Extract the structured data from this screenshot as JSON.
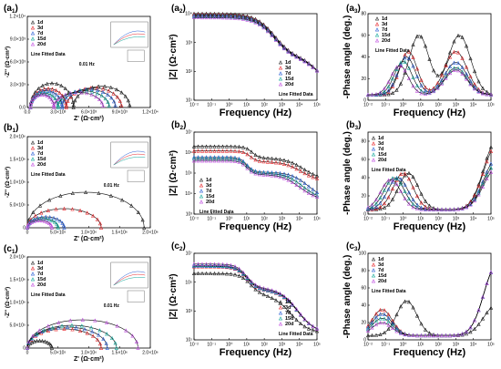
{
  "figure": {
    "legend_entries": [
      "1d",
      "3d",
      "7d",
      "15d",
      "20d"
    ],
    "fit_label": "Line Fitted Data",
    "freq_note": "0.01 Hz",
    "colors": {
      "1d": "#222222",
      "3d": "#e8262b",
      "7d": "#2a5fd6",
      "15d": "#12a79a",
      "20d": "#c04fe0",
      "fit": "#000000"
    }
  },
  "chart_data": [
    {
      "panel": "a1",
      "type": "scatter",
      "xlabel": "Z' (Ω·cm²)",
      "ylabel": "-Z'' (Ω·cm²)",
      "xlim": [
        0,
        12000
      ],
      "ylim": [
        0,
        12000
      ],
      "xticks": [
        0,
        3000,
        6000,
        9000,
        12000
      ],
      "yticks": [
        0,
        3000,
        6000,
        9000,
        12000
      ],
      "xtick_labels": [
        "0.0",
        "3.0×10³",
        "6.0×10³",
        "9.0×10³",
        "1.2×10⁴"
      ],
      "ytick_labels": [
        "0.0",
        "3.0×10³",
        "6.0×10³",
        "9.0×10³",
        "1.2×10⁴"
      ],
      "series": [
        {
          "name": "1d",
          "shape": "arcs",
          "arcs": [
            [
              300,
              4500,
              3200
            ],
            [
              4500,
              10000,
              2800
            ]
          ]
        },
        {
          "name": "3d",
          "shape": "arcs",
          "arcs": [
            [
              300,
              3800,
              2500
            ],
            [
              3800,
              9200,
              2600
            ]
          ]
        },
        {
          "name": "7d",
          "shape": "arcs",
          "arcs": [
            [
              300,
              3400,
              2200
            ],
            [
              3400,
              8600,
              2400
            ]
          ]
        },
        {
          "name": "15d",
          "shape": "arcs",
          "arcs": [
            [
              300,
              3000,
              1900
            ],
            [
              3000,
              8000,
              2200
            ]
          ]
        },
        {
          "name": "20d",
          "shape": "arcs",
          "arcs": [
            [
              300,
              2600,
              1700
            ],
            [
              2600,
              7400,
              2000
            ]
          ]
        }
      ]
    },
    {
      "panel": "a2",
      "type": "line",
      "xscale": "log",
      "yscale": "log",
      "xlabel": "Frequency (Hz)",
      "ylabel": "|Z| (Ω·cm²)",
      "xlim": [
        0.01,
        100000
      ],
      "ylim": [
        10,
        10000
      ],
      "xticks": [
        0.01,
        0.1,
        1,
        10,
        100,
        1000,
        10000,
        100000
      ],
      "yticks": [
        10,
        100,
        1000,
        10000
      ],
      "xtick_labels": [
        "10⁻²",
        "10⁻¹",
        "10⁰",
        "10¹",
        "10²",
        "10³",
        "10⁴",
        "10⁵"
      ],
      "ytick_labels": [
        "10¹",
        "10²",
        "10³",
        "10⁴"
      ],
      "series": [
        {
          "name": "1d",
          "shape": "steps",
          "steps": [
            {
              "h": 5,
              "d": 0.4
            },
            {
              "h": 2.6,
              "d": 0.55
            }
          ],
          "low": 40,
          "high": 10000
        },
        {
          "name": "3d",
          "shape": "steps",
          "steps": [
            {
              "h": 5,
              "d": 0.4
            },
            {
              "h": 2.6,
              "d": 0.55
            }
          ],
          "low": 40,
          "high": 9200
        },
        {
          "name": "7d",
          "shape": "steps",
          "steps": [
            {
              "h": 5,
              "d": 0.4
            },
            {
              "h": 2.6,
              "d": 0.55
            }
          ],
          "low": 40,
          "high": 8600
        },
        {
          "name": "15d",
          "shape": "steps",
          "steps": [
            {
              "h": 5,
              "d": 0.4
            },
            {
              "h": 2.6,
              "d": 0.55
            }
          ],
          "low": 40,
          "high": 8000
        },
        {
          "name": "20d",
          "shape": "steps",
          "steps": [
            {
              "h": 5,
              "d": 0.4
            },
            {
              "h": 2.6,
              "d": 0.55
            }
          ],
          "low": 40,
          "high": 7400
        }
      ]
    },
    {
      "panel": "a3",
      "type": "line",
      "xscale": "log",
      "xlabel": "Frequency (Hz)",
      "ylabel": "-Phase angle (deg.)",
      "xlim": [
        0.01,
        100000
      ],
      "ylim": [
        0,
        80
      ],
      "xticks": [
        0.01,
        0.1,
        1,
        10,
        100,
        1000,
        10000,
        100000
      ],
      "yticks": [
        0,
        20,
        40,
        60,
        80
      ],
      "xtick_labels": [
        "10⁻²",
        "10⁻¹",
        "10⁰",
        "10¹",
        "10²",
        "10³",
        "10⁴",
        "10⁵"
      ],
      "ytick_labels": [
        "0",
        "20",
        "40",
        "60",
        "80"
      ],
      "series": [
        {
          "name": "1d",
          "shape": "peaks",
          "base": 5,
          "peaks": [
            [
              0.9,
              60,
              0.8
            ],
            [
              3.2,
              60,
              0.9
            ]
          ]
        },
        {
          "name": "3d",
          "shape": "peaks",
          "base": 5,
          "peaks": [
            [
              0.3,
              45,
              0.7
            ],
            [
              3.0,
              45,
              0.9
            ]
          ]
        },
        {
          "name": "7d",
          "shape": "peaks",
          "base": 5,
          "peaks": [
            [
              0.2,
              40,
              0.7
            ],
            [
              3.0,
              35,
              0.9
            ]
          ]
        },
        {
          "name": "15d",
          "shape": "peaks",
          "base": 5,
          "peaks": [
            [
              0.0,
              36,
              0.7
            ],
            [
              3.0,
              30,
              0.9
            ]
          ]
        },
        {
          "name": "20d",
          "shape": "peaks",
          "base": 5,
          "peaks": [
            [
              -0.2,
              32,
              0.7
            ],
            [
              3.0,
              28,
              0.9
            ]
          ]
        }
      ]
    },
    {
      "panel": "b1",
      "type": "scatter",
      "xlabel": "Z' (Ω·cm²)",
      "ylabel": "-Z'' (Ω·cm²)",
      "xlim": [
        0,
        2000000
      ],
      "ylim": [
        0,
        2000000
      ],
      "xticks": [
        0,
        500000,
        1000000,
        1500000,
        2000000
      ],
      "yticks": [
        0,
        500000,
        1000000,
        1500000,
        2000000
      ],
      "xtick_labels": [
        "0",
        "5.0×10⁵",
        "1.0×10⁶",
        "1.5×10⁶",
        "2.0×10⁶"
      ],
      "ytick_labels": [
        "0",
        "5.0×10⁵",
        "1.0×10⁶",
        "1.5×10⁶",
        "2.0×10⁶"
      ],
      "series": [
        {
          "name": "1d",
          "shape": "arcs",
          "arcs": [
            [
              0,
              1900000,
              780000
            ]
          ]
        },
        {
          "name": "3d",
          "shape": "arcs",
          "arcs": [
            [
              0,
              1200000,
              420000
            ]
          ]
        },
        {
          "name": "7d",
          "shape": "arcs",
          "arcs": [
            [
              0,
              600000,
              240000
            ]
          ]
        },
        {
          "name": "15d",
          "shape": "arcs",
          "arcs": [
            [
              0,
              500000,
              200000
            ]
          ]
        },
        {
          "name": "20d",
          "shape": "arcs",
          "arcs": [
            [
              0,
              400000,
              160000
            ]
          ]
        }
      ]
    },
    {
      "panel": "b2",
      "type": "line",
      "xscale": "log",
      "yscale": "log",
      "xlabel": "Frequency (Hz)",
      "ylabel": "|Z| (Ω·cm²)",
      "xlim": [
        0.01,
        100000
      ],
      "ylim": [
        1000,
        10000000
      ],
      "xticks": [
        0.01,
        0.1,
        1,
        10,
        100,
        1000,
        10000,
        100000
      ],
      "yticks": [
        1000,
        10000,
        100000,
        1000000,
        10000000
      ],
      "xtick_labels": [
        "10⁻²",
        "10⁻¹",
        "10⁰",
        "10¹",
        "10²",
        "10³",
        "10⁴",
        "10⁵"
      ],
      "ytick_labels": [
        "10³",
        "10⁴",
        "10⁵",
        "10⁶",
        "10⁷"
      ],
      "series": [
        {
          "name": "1d",
          "shape": "steps",
          "steps": [
            {
              "h": 1.3,
              "d": 0.2
            },
            {
              "h": 4.2,
              "d": 0.5
            }
          ],
          "low": 50000,
          "high": 2000000
        },
        {
          "name": "3d",
          "shape": "steps",
          "steps": [
            {
              "h": 1.2,
              "d": 0.2
            },
            {
              "h": 4.1,
              "d": 0.5
            }
          ],
          "low": 40000,
          "high": 1200000
        },
        {
          "name": "7d",
          "shape": "steps",
          "steps": [
            {
              "h": 1.0,
              "d": 0.2
            },
            {
              "h": 4.5,
              "d": 0.5
            }
          ],
          "low": 5000,
          "high": 600000
        },
        {
          "name": "15d",
          "shape": "steps",
          "steps": [
            {
              "h": 1.0,
              "d": 0.2
            },
            {
              "h": 4.2,
              "d": 0.5
            }
          ],
          "low": 5000,
          "high": 500000
        },
        {
          "name": "20d",
          "shape": "steps",
          "steps": [
            {
              "h": 1.0,
              "d": 0.2
            },
            {
              "h": 4.0,
              "d": 0.5
            }
          ],
          "low": 5000,
          "high": 400000
        }
      ]
    },
    {
      "panel": "b3",
      "type": "line",
      "xscale": "log",
      "xlabel": "Frequency (Hz)",
      "ylabel": "-Phase angle (deg.)",
      "xlim": [
        0.01,
        100000
      ],
      "ylim": [
        0,
        90
      ],
      "xticks": [
        0.01,
        0.1,
        1,
        10,
        100,
        1000,
        10000,
        100000
      ],
      "yticks": [
        0,
        20,
        40,
        60,
        80
      ],
      "xtick_labels": [
        "10⁻²",
        "10⁻¹",
        "10⁰",
        "10¹",
        "10²",
        "10³",
        "10⁴",
        "10⁵"
      ],
      "ytick_labels": [
        "0",
        "20",
        "40",
        "60",
        "80"
      ],
      "series": [
        {
          "name": "1d",
          "shape": "peaks",
          "base": 5,
          "peaks": [
            [
              0.3,
              45,
              0.8
            ],
            [
              5.3,
              80,
              1.0
            ]
          ]
        },
        {
          "name": "3d",
          "shape": "peaks",
          "base": 5,
          "peaks": [
            [
              0.0,
              45,
              0.8
            ],
            [
              5.3,
              75,
              1.0
            ]
          ]
        },
        {
          "name": "7d",
          "shape": "peaks",
          "base": 5,
          "peaks": [
            [
              -0.3,
              40,
              0.8
            ],
            [
              5.3,
              60,
              1.0
            ]
          ]
        },
        {
          "name": "15d",
          "shape": "peaks",
          "base": 5,
          "peaks": [
            [
              -0.5,
              40,
              0.8
            ],
            [
              5.3,
              55,
              1.0
            ]
          ]
        },
        {
          "name": "20d",
          "shape": "peaks",
          "base": 5,
          "peaks": [
            [
              -0.7,
              38,
              0.8
            ],
            [
              5.3,
              50,
              1.0
            ]
          ]
        }
      ]
    },
    {
      "panel": "c1",
      "type": "scatter",
      "xlabel": "Z' (Ω·cm²)",
      "ylabel": "-Z'' (Ω·cm²)",
      "xlim": [
        0,
        2000000
      ],
      "ylim": [
        0,
        2000000
      ],
      "xticks": [
        0,
        500000,
        1000000,
        1500000,
        2000000
      ],
      "yticks": [
        0,
        500000,
        1000000,
        1500000,
        2000000
      ],
      "xtick_labels": [
        "0",
        "5.0×10⁵",
        "1.0×10⁶",
        "1.5×10⁶",
        "2.0×10⁶"
      ],
      "ytick_labels": [
        "0",
        "5.0×10⁵",
        "1.0×10⁶",
        "1.5×10⁶",
        "2.0×10⁶"
      ],
      "series": [
        {
          "name": "1d",
          "shape": "arcs",
          "arcs": [
            [
              0,
              400000,
              160000
            ]
          ]
        },
        {
          "name": "3d",
          "shape": "arcs",
          "arcs": [
            [
              0,
              1200000,
              420000
            ]
          ]
        },
        {
          "name": "7d",
          "shape": "arcs",
          "arcs": [
            [
              0,
              1300000,
              460000
            ]
          ]
        },
        {
          "name": "15d",
          "shape": "arcs",
          "arcs": [
            [
              0,
              1450000,
              500000
            ]
          ]
        },
        {
          "name": "20d",
          "shape": "arcs",
          "arcs": [
            [
              0,
              1800000,
              620000
            ]
          ]
        }
      ]
    },
    {
      "panel": "c2",
      "type": "line",
      "xscale": "log",
      "yscale": "log",
      "xlabel": "Frequency (Hz)",
      "ylabel": "|Z| (Ω·cm²)",
      "xlim": [
        0.01,
        100000
      ],
      "ylim": [
        10,
        10000000
      ],
      "xticks": [
        0.01,
        0.1,
        1,
        10,
        100,
        1000,
        10000,
        100000
      ],
      "yticks": [
        10,
        1000,
        100000,
        10000000
      ],
      "xtick_labels": [
        "10⁻²",
        "10⁻¹",
        "10⁰",
        "10¹",
        "10²",
        "10³",
        "10⁴",
        "10⁵"
      ],
      "ytick_labels": [
        "10¹",
        "10³",
        "10⁵",
        "10⁷"
      ],
      "series": [
        {
          "name": "1d",
          "shape": "steps",
          "steps": [
            {
              "h": 1.2,
              "d": 0.3
            },
            {
              "h": 3.5,
              "d": 0.5
            }
          ],
          "low": 30,
          "high": 400000
        },
        {
          "name": "3d",
          "shape": "steps",
          "steps": [
            {
              "h": 1.0,
              "d": 0.3
            },
            {
              "h": 3.9,
              "d": 0.5
            }
          ],
          "low": 30,
          "high": 1200000
        },
        {
          "name": "7d",
          "shape": "steps",
          "steps": [
            {
              "h": 1.0,
              "d": 0.3
            },
            {
              "h": 3.9,
              "d": 0.5
            }
          ],
          "low": 30,
          "high": 1300000
        },
        {
          "name": "15d",
          "shape": "steps",
          "steps": [
            {
              "h": 1.0,
              "d": 0.3
            },
            {
              "h": 3.9,
              "d": 0.5
            }
          ],
          "low": 30,
          "high": 1450000
        },
        {
          "name": "20d",
          "shape": "steps",
          "steps": [
            {
              "h": 1.0,
              "d": 0.3
            },
            {
              "h": 3.9,
              "d": 0.5
            }
          ],
          "low": 30,
          "high": 1800000
        }
      ]
    },
    {
      "panel": "c3",
      "type": "line",
      "xscale": "log",
      "xlabel": "Frequency (Hz)",
      "ylabel": "-Phase angle (deg.)",
      "xlim": [
        0.01,
        100000
      ],
      "ylim": [
        0,
        100
      ],
      "xticks": [
        0.01,
        0.1,
        1,
        10,
        100,
        1000,
        10000,
        100000
      ],
      "yticks": [
        0,
        20,
        40,
        60,
        80,
        100
      ],
      "xtick_labels": [
        "10⁻²",
        "10⁻¹",
        "10⁰",
        "10¹",
        "10²",
        "10³",
        "10⁴",
        "10⁵"
      ],
      "ytick_labels": [
        "0",
        "20",
        "40",
        "60",
        "80",
        "100"
      ],
      "series": [
        {
          "name": "1d",
          "shape": "peaks",
          "base": 5,
          "peaks": [
            [
              0.2,
              45,
              0.8
            ],
            [
              5.3,
              40,
              1.0
            ]
          ]
        },
        {
          "name": "3d",
          "shape": "peaks",
          "base": 5,
          "peaks": [
            [
              -1.2,
              35,
              0.8
            ],
            [
              5.3,
              85,
              1.0
            ]
          ]
        },
        {
          "name": "7d",
          "shape": "peaks",
          "base": 5,
          "peaks": [
            [
              -1.2,
              30,
              0.8
            ],
            [
              5.3,
              85,
              1.0
            ]
          ]
        },
        {
          "name": "15d",
          "shape": "peaks",
          "base": 5,
          "peaks": [
            [
              -1.2,
              25,
              0.8
            ],
            [
              5.3,
              85,
              1.0
            ]
          ]
        },
        {
          "name": "20d",
          "shape": "peaks",
          "base": 5,
          "peaks": [
            [
              -1.2,
              20,
              0.8
            ],
            [
              5.3,
              85,
              1.0
            ]
          ]
        }
      ]
    }
  ]
}
